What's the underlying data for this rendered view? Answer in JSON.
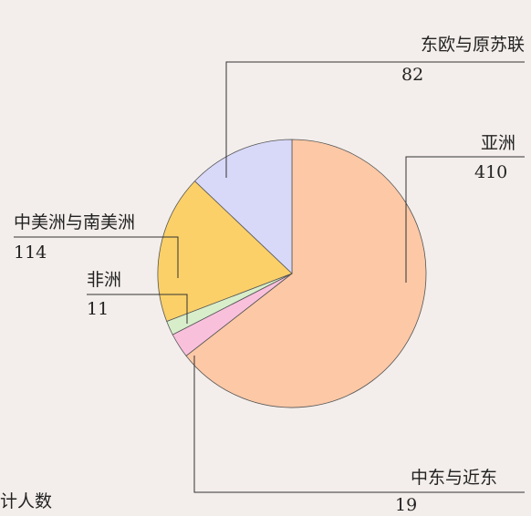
{
  "chart_data": {
    "type": "pie",
    "categories": [
      "亚洲",
      "中东与近东",
      "非洲",
      "中美洲与南美洲",
      "东欧与原苏联"
    ],
    "values": [
      410,
      19,
      11,
      114,
      82
    ],
    "colors": [
      "#fcc8a6",
      "#f9c0dc",
      "#d8eecb",
      "#fbd068",
      "#d8d8f8"
    ],
    "note": "计人数"
  }
}
